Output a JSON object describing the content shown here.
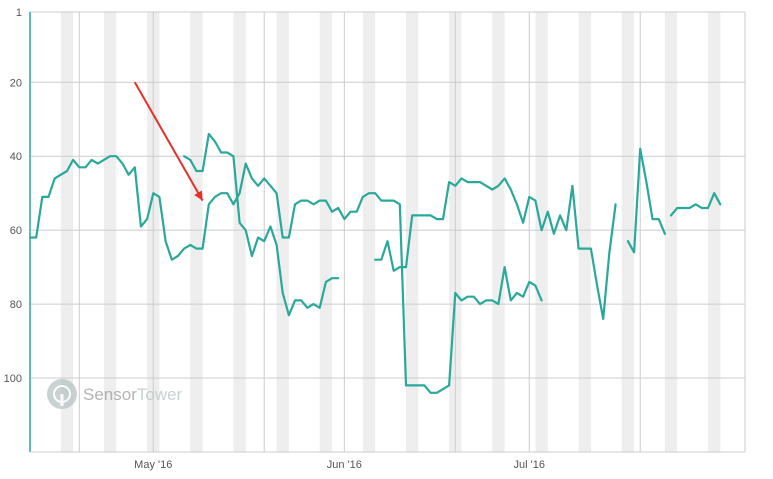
{
  "watermark": {
    "brand_part1": "Sensor",
    "brand_part2": "Tower"
  },
  "colors": {
    "line": "#2aa89a",
    "arrow": "#e8302a",
    "grid": "#cccccc",
    "weekend_band": "#eeeeee",
    "axis_text": "#555555",
    "watermark_dark": "#9a9a9a",
    "watermark_light": "#b8c4c4"
  },
  "chart_data": {
    "type": "line",
    "title": "",
    "xlabel": "",
    "ylabel": "",
    "y_axis": {
      "reversed": true,
      "ylim": [
        1,
        120
      ],
      "ticks": [
        1,
        20,
        40,
        60,
        80,
        100
      ],
      "tick_labels": [
        "1",
        "20",
        "40",
        "60",
        "80",
        "100"
      ]
    },
    "x_axis": {
      "xlim": [
        "2016-04-11",
        "2016-08-05"
      ],
      "tick_labels": [
        {
          "date": "2016-05-01",
          "label": "May '16"
        },
        {
          "date": "2016-06-01",
          "label": "Jun '16"
        },
        {
          "date": "2016-07-01",
          "label": "Jul '16"
        }
      ]
    },
    "grid": true,
    "series": [
      {
        "segments": [
          [
            [
              "2016-04-11",
              62
            ],
            [
              "2016-04-12",
              62
            ],
            [
              "2016-04-13",
              51
            ],
            [
              "2016-04-14",
              51
            ],
            [
              "2016-04-15",
              46
            ],
            [
              "2016-04-17",
              44
            ],
            [
              "2016-04-18",
              41
            ],
            [
              "2016-04-19",
              43
            ],
            [
              "2016-04-20",
              43
            ],
            [
              "2016-04-21",
              41
            ],
            [
              "2016-04-22",
              42
            ],
            [
              "2016-04-24",
              40
            ],
            [
              "2016-04-25",
              40
            ],
            [
              "2016-04-26",
              42
            ],
            [
              "2016-04-27",
              45
            ],
            [
              "2016-04-28",
              43
            ],
            [
              "2016-04-29",
              59
            ],
            [
              "2016-04-30",
              57
            ],
            [
              "2016-05-01",
              50
            ],
            [
              "2016-05-02",
              51
            ],
            [
              "2016-05-03",
              63
            ],
            [
              "2016-05-04",
              68
            ],
            [
              "2016-05-05",
              67
            ],
            [
              "2016-05-06",
              65
            ],
            [
              "2016-05-07",
              64
            ],
            [
              "2016-05-08",
              65
            ],
            [
              "2016-05-09",
              65
            ],
            [
              "2016-05-10",
              53
            ],
            [
              "2016-05-11",
              51
            ],
            [
              "2016-05-12",
              50
            ],
            [
              "2016-05-13",
              50
            ],
            [
              "2016-05-14",
              53
            ],
            [
              "2016-05-15",
              50
            ],
            [
              "2016-05-16",
              42
            ],
            [
              "2016-05-17",
              46
            ],
            [
              "2016-05-18",
              48
            ],
            [
              "2016-05-19",
              46
            ],
            [
              "2016-05-20",
              48
            ],
            [
              "2016-05-21",
              50
            ],
            [
              "2016-05-22",
              62
            ],
            [
              "2016-05-23",
              62
            ],
            [
              "2016-05-24",
              53
            ],
            [
              "2016-05-25",
              52
            ],
            [
              "2016-05-26",
              52
            ],
            [
              "2016-05-27",
              53
            ],
            [
              "2016-05-28",
              52
            ],
            [
              "2016-05-29",
              52
            ],
            [
              "2016-05-30",
              55
            ],
            [
              "2016-05-31",
              54
            ],
            [
              "2016-06-01",
              57
            ],
            [
              "2016-06-02",
              55
            ],
            [
              "2016-06-03",
              55
            ],
            [
              "2016-06-04",
              51
            ],
            [
              "2016-06-05",
              50
            ],
            [
              "2016-06-06",
              50
            ],
            [
              "2016-06-07",
              52
            ],
            [
              "2016-06-08",
              52
            ],
            [
              "2016-06-09",
              52
            ],
            [
              "2016-06-10",
              53
            ],
            [
              "2016-06-11",
              102
            ],
            [
              "2016-06-12",
              102
            ],
            [
              "2016-06-13",
              102
            ],
            [
              "2016-06-14",
              102
            ],
            [
              "2016-06-15",
              104
            ],
            [
              "2016-06-16",
              104
            ],
            [
              "2016-06-17",
              103
            ],
            [
              "2016-06-18",
              102
            ],
            [
              "2016-06-19",
              77
            ],
            [
              "2016-06-20",
              79
            ],
            [
              "2016-06-21",
              78
            ],
            [
              "2016-06-22",
              78
            ],
            [
              "2016-06-23",
              80
            ],
            [
              "2016-06-24",
              79
            ],
            [
              "2016-06-25",
              79
            ],
            [
              "2016-06-26",
              80
            ],
            [
              "2016-06-27",
              70
            ],
            [
              "2016-06-28",
              79
            ],
            [
              "2016-06-29",
              77
            ],
            [
              "2016-06-30",
              78
            ],
            [
              "2016-07-01",
              74
            ],
            [
              "2016-07-02",
              75
            ],
            [
              "2016-07-03",
              79
            ]
          ],
          [
            [
              "2016-05-06",
              40
            ],
            [
              "2016-05-07",
              41
            ],
            [
              "2016-05-08",
              44
            ],
            [
              "2016-05-09",
              44
            ],
            [
              "2016-05-10",
              34
            ],
            [
              "2016-05-11",
              36
            ],
            [
              "2016-05-12",
              39
            ],
            [
              "2016-05-13",
              39
            ],
            [
              "2016-05-14",
              40
            ],
            [
              "2016-05-15",
              58
            ],
            [
              "2016-05-16",
              60
            ],
            [
              "2016-05-17",
              67
            ],
            [
              "2016-05-18",
              62
            ],
            [
              "2016-05-19",
              63
            ],
            [
              "2016-05-20",
              59
            ],
            [
              "2016-05-21",
              64
            ],
            [
              "2016-05-22",
              77
            ],
            [
              "2016-05-23",
              83
            ],
            [
              "2016-05-24",
              79
            ],
            [
              "2016-05-25",
              79
            ],
            [
              "2016-05-26",
              81
            ],
            [
              "2016-05-27",
              80
            ],
            [
              "2016-05-28",
              81
            ],
            [
              "2016-05-29",
              74
            ],
            [
              "2016-05-30",
              73
            ],
            [
              "2016-05-31",
              73
            ]
          ],
          [
            [
              "2016-06-06",
              68
            ],
            [
              "2016-06-07",
              68
            ],
            [
              "2016-06-08",
              63
            ],
            [
              "2016-06-09",
              71
            ],
            [
              "2016-06-10",
              70
            ],
            [
              "2016-06-11",
              70
            ],
            [
              "2016-06-12",
              56
            ],
            [
              "2016-06-13",
              56
            ],
            [
              "2016-06-14",
              56
            ],
            [
              "2016-06-15",
              56
            ],
            [
              "2016-06-16",
              57
            ],
            [
              "2016-06-17",
              57
            ],
            [
              "2016-06-18",
              47
            ],
            [
              "2016-06-19",
              48
            ],
            [
              "2016-06-20",
              46
            ],
            [
              "2016-06-21",
              47
            ],
            [
              "2016-06-22",
              47
            ],
            [
              "2016-06-23",
              47
            ],
            [
              "2016-06-24",
              48
            ],
            [
              "2016-06-25",
              49
            ],
            [
              "2016-06-26",
              48
            ],
            [
              "2016-06-27",
              46
            ],
            [
              "2016-06-28",
              49
            ],
            [
              "2016-06-29",
              53
            ],
            [
              "2016-06-30",
              58
            ],
            [
              "2016-07-01",
              51
            ],
            [
              "2016-07-02",
              52
            ],
            [
              "2016-07-03",
              60
            ],
            [
              "2016-07-04",
              55
            ],
            [
              "2016-07-05",
              61
            ],
            [
              "2016-07-06",
              56
            ],
            [
              "2016-07-07",
              60
            ],
            [
              "2016-07-08",
              48
            ],
            [
              "2016-07-09",
              65
            ],
            [
              "2016-07-10",
              65
            ],
            [
              "2016-07-11",
              65
            ],
            [
              "2016-07-12",
              75
            ],
            [
              "2016-07-13",
              84
            ],
            [
              "2016-07-14",
              66
            ],
            [
              "2016-07-15",
              53
            ]
          ],
          [
            [
              "2016-07-17",
              63
            ],
            [
              "2016-07-18",
              66
            ],
            [
              "2016-07-19",
              38
            ],
            [
              "2016-07-20",
              47
            ],
            [
              "2016-07-21",
              57
            ],
            [
              "2016-07-22",
              57
            ],
            [
              "2016-07-23",
              61
            ]
          ],
          [
            [
              "2016-07-24",
              56
            ],
            [
              "2016-07-25",
              54
            ],
            [
              "2016-07-26",
              54
            ],
            [
              "2016-07-27",
              54
            ],
            [
              "2016-07-28",
              53
            ],
            [
              "2016-07-29",
              54
            ],
            [
              "2016-07-30",
              54
            ],
            [
              "2016-07-31",
              50
            ],
            [
              "2016-08-01",
              53
            ]
          ]
        ]
      }
    ],
    "annotations": [
      {
        "type": "arrow",
        "from": [
          "2016-04-28",
          20
        ],
        "to": [
          "2016-05-09",
          52
        ]
      }
    ]
  }
}
